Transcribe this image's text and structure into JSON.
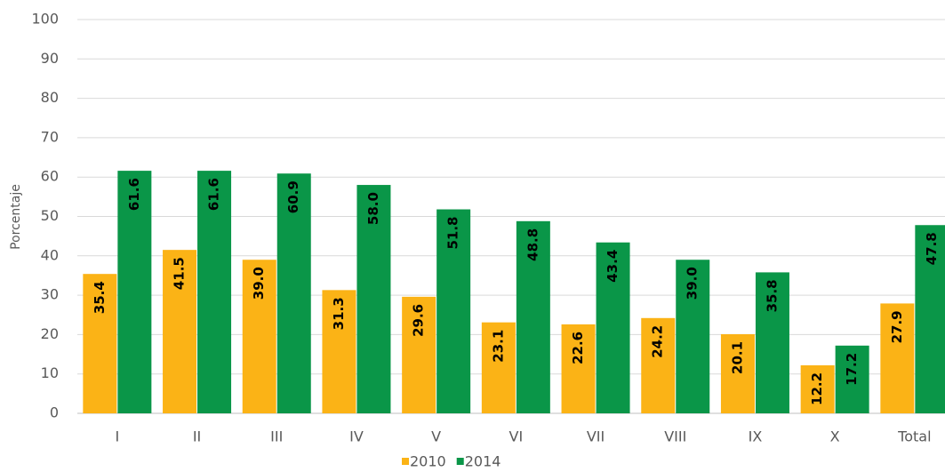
{
  "chart_data": {
    "type": "bar",
    "ylabel": "Porcentaje",
    "categories": [
      "I",
      "II",
      "III",
      "IV",
      "V",
      "VI",
      "VII",
      "VIII",
      "IX",
      "X",
      "Total"
    ],
    "series": [
      {
        "name": "2010",
        "color": "#fbb316",
        "values": [
          35.4,
          41.5,
          39.0,
          31.3,
          29.6,
          23.1,
          22.6,
          24.2,
          20.1,
          12.2,
          27.9
        ],
        "value_labels": [
          "35.4",
          "41.5",
          "39.0",
          "31.3",
          "29.6",
          "23.1",
          "22.6",
          "24.2",
          "20.1",
          "12.2",
          "27.9"
        ]
      },
      {
        "name": "2014",
        "color": "#0a9648",
        "values": [
          61.6,
          61.6,
          60.9,
          58.0,
          51.8,
          48.8,
          43.4,
          39.0,
          35.8,
          17.2,
          47.8
        ],
        "value_labels": [
          "61.6",
          "61.6",
          "60.9",
          "58.0",
          "51.8",
          "48.8",
          "43.4",
          "39.0",
          "35.8",
          "17.2",
          "47.8"
        ]
      }
    ],
    "ylim": [
      0,
      100
    ],
    "yticks": [
      0,
      10,
      20,
      30,
      40,
      50,
      60,
      70,
      80,
      90,
      100
    ],
    "grid": true,
    "legend": "bottom"
  }
}
